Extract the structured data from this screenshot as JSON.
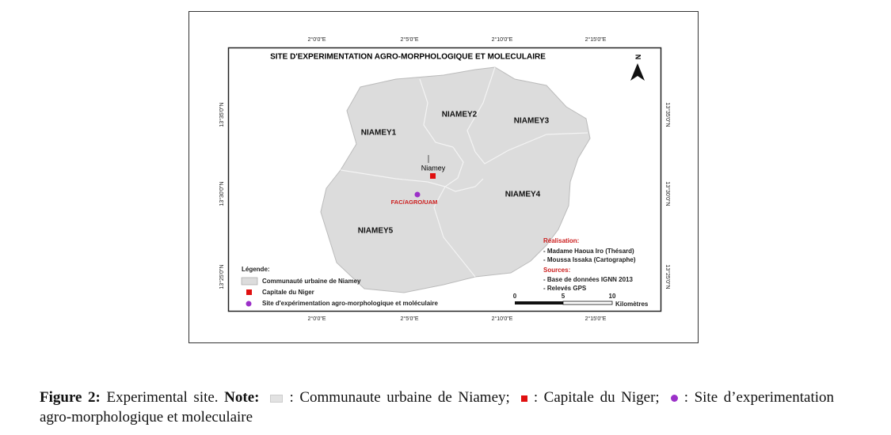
{
  "map": {
    "title": "SITE D'EXPERIMENTATION AGRO-MORPHOLOGIQUE ET MOLECULAIRE",
    "longitude_labels": [
      "2°0'0\"E",
      "2°5'0\"E",
      "2°10'0\"E",
      "2°15'0\"E"
    ],
    "latitude_labels": [
      "13°35'0\"N",
      "13°30'0\"N",
      "13°25'0\"N"
    ],
    "north": "N",
    "districts": [
      "NIAMEY1",
      "NIAMEY2",
      "NIAMEY3",
      "NIAMEY4",
      "NIAMEY5"
    ],
    "capital_label": "Niamey",
    "site_label": "FAC/AGRO/UAM",
    "legend": {
      "title": "Légende:",
      "items": [
        "Communauté urbaine de Niamey",
        "Capitale du Niger",
        "Site d'expérimentation agro-morphologique et moléculaire"
      ]
    },
    "credits": {
      "realisation_title": "Réalisation:",
      "realisation": [
        "- Madame Haoua Iro (Thésard)",
        "- Moussa Issaka (Cartographe)"
      ],
      "sources_title": "Sources:",
      "sources": [
        "- Base de données IGNN 2013",
        "- Relevés GPS"
      ]
    },
    "scale": {
      "ticks": [
        "0",
        "5",
        "10"
      ],
      "unit": "Kilomètres"
    }
  },
  "caption": {
    "label": "Figure 2:",
    "title": "Experimental site.",
    "note": "Note:",
    "items": [
      ": Communaute urbaine de Niamey;",
      ": Capitale du Niger;",
      ": Site d’experimentation agro-morphologique et moleculaire"
    ]
  }
}
